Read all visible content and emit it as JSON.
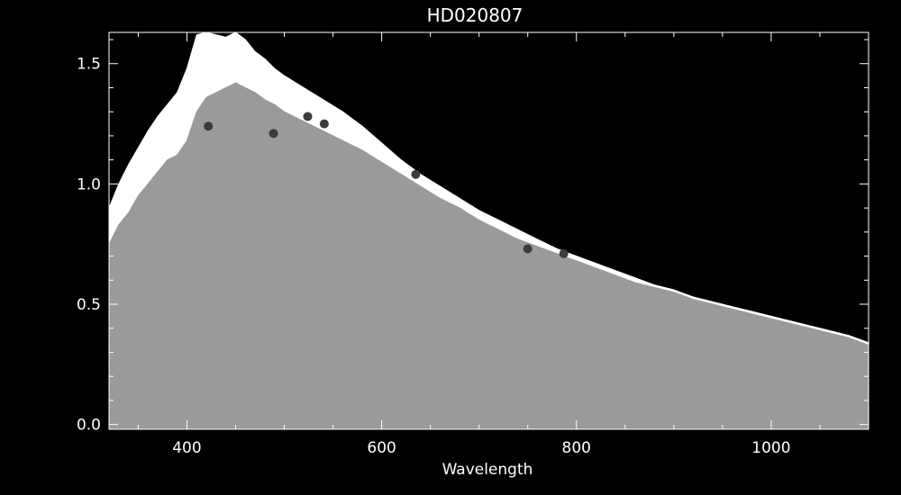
{
  "chart_data": {
    "type": "line",
    "title": "HD020807",
    "xlabel": "Wavelength",
    "ylabel": "",
    "xlim": [
      320,
      1100
    ],
    "ylim": [
      -0.02,
      1.63
    ],
    "xticks": [
      400,
      600,
      800,
      1000
    ],
    "yticks": [
      0.0,
      0.5,
      1.0,
      1.5
    ],
    "xtick_labels": [
      "400",
      "600",
      "800",
      "1000"
    ],
    "ytick_labels": [
      "0.0",
      "0.5",
      "1.0",
      "1.5"
    ],
    "grid": false,
    "background": "#000000",
    "series": [
      {
        "color": "#ffffff",
        "x": [
          320,
          330,
          340,
          350,
          360,
          370,
          380,
          390,
          400,
          410,
          420,
          430,
          440,
          450,
          460,
          470,
          480,
          490,
          500,
          520,
          540,
          560,
          580,
          600,
          620,
          640,
          660,
          680,
          700,
          720,
          740,
          760,
          780,
          800,
          820,
          840,
          860,
          880,
          900,
          920,
          940,
          960,
          980,
          1000,
          1020,
          1040,
          1060,
          1080,
          1100
        ],
        "y": [
          0.9,
          1.0,
          1.08,
          1.15,
          1.22,
          1.28,
          1.33,
          1.38,
          1.48,
          1.62,
          1.63,
          1.62,
          1.61,
          1.63,
          1.6,
          1.55,
          1.52,
          1.48,
          1.45,
          1.4,
          1.35,
          1.3,
          1.24,
          1.17,
          1.1,
          1.04,
          0.99,
          0.94,
          0.89,
          0.85,
          0.81,
          0.77,
          0.73,
          0.7,
          0.67,
          0.64,
          0.61,
          0.58,
          0.56,
          0.53,
          0.51,
          0.49,
          0.47,
          0.45,
          0.43,
          0.41,
          0.39,
          0.37,
          0.34
        ]
      },
      {
        "color": "#9a9a9a",
        "x": [
          320,
          330,
          340,
          350,
          360,
          370,
          380,
          390,
          400,
          410,
          420,
          430,
          440,
          450,
          460,
          470,
          480,
          490,
          500,
          520,
          540,
          560,
          580,
          600,
          620,
          640,
          660,
          680,
          700,
          720,
          740,
          760,
          780,
          800,
          820,
          840,
          860,
          880,
          900,
          920,
          940,
          960,
          980,
          1000,
          1020,
          1040,
          1060,
          1080,
          1100
        ],
        "y": [
          0.75,
          0.83,
          0.88,
          0.95,
          1.0,
          1.05,
          1.1,
          1.12,
          1.18,
          1.3,
          1.36,
          1.38,
          1.4,
          1.42,
          1.4,
          1.38,
          1.35,
          1.33,
          1.3,
          1.26,
          1.22,
          1.18,
          1.14,
          1.09,
          1.04,
          0.99,
          0.94,
          0.9,
          0.85,
          0.81,
          0.77,
          0.74,
          0.71,
          0.68,
          0.65,
          0.62,
          0.59,
          0.57,
          0.55,
          0.52,
          0.5,
          0.48,
          0.46,
          0.44,
          0.42,
          0.4,
          0.38,
          0.36,
          0.33
        ]
      }
    ],
    "points": {
      "color": "#3c3c3c",
      "x": [
        422,
        489,
        524,
        541,
        635,
        750,
        787
      ],
      "y": [
        1.24,
        1.21,
        1.28,
        1.25,
        1.04,
        0.73,
        0.71
      ]
    }
  }
}
